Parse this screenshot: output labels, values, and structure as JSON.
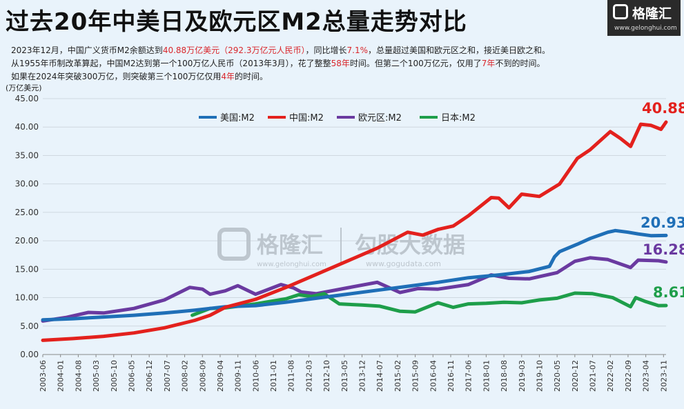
{
  "header": {
    "title": "过去20年中美日及欧元区M2总量走势对比",
    "line1": [
      {
        "t": "2023年12月，中国广义货币M2余额达到",
        "hl": false
      },
      {
        "t": "40.88万亿美元（292.3万亿元人民币）",
        "hl": true
      },
      {
        "t": "，同比增长",
        "hl": false
      },
      {
        "t": "7.1%",
        "hl": true
      },
      {
        "t": "，总量超过美国和欧元区之和，接近美日欧之和。",
        "hl": false
      }
    ],
    "line2": [
      {
        "t": "从1955年币制改革算起，中国M2达到第一个100万亿人民币（2013年3月），花了整整",
        "hl": false
      },
      {
        "t": "58年",
        "hl": true
      },
      {
        "t": "时间。但第二个100万亿元，仅用了",
        "hl": false
      },
      {
        "t": "7年",
        "hl": true
      },
      {
        "t": "不到的时间。",
        "hl": false
      }
    ],
    "line3": [
      {
        "t": "如果在2024年突破300万亿，则突破第三个100万亿仅用",
        "hl": false
      },
      {
        "t": "4年",
        "hl": true
      },
      {
        "t": "的时间。",
        "hl": false
      }
    ]
  },
  "logo": {
    "name": "格隆汇",
    "url": "www.gelonghui.com"
  },
  "watermark": {
    "name": "格隆汇",
    "url1": "www.gelonghui.com",
    "name2": "勾股大数据",
    "url2": "www.gogudata.com"
  },
  "colors": {
    "usa": "#1f6fb7",
    "china": "#e3211d",
    "euro": "#6a3aa0",
    "japan": "#1e9e4a"
  },
  "chart_data": {
    "type": "line",
    "unit_label": "(万亿美元)",
    "ylim": [
      0,
      45
    ],
    "y_ticks": [
      "0.00",
      "5.00",
      "10.00",
      "15.00",
      "20.00",
      "25.00",
      "30.00",
      "35.00",
      "40.00",
      "45.00"
    ],
    "grid": "horizontal",
    "legend_position": "top",
    "x_range": [
      "2003-06",
      "2023-12"
    ],
    "x_ticks": [
      "2003-06",
      "2004-01",
      "2004-08",
      "2005-03",
      "2005-10",
      "2006-05",
      "2006-12",
      "2007-07",
      "2008-02",
      "2008-09",
      "2009-04",
      "2009-11",
      "2010-06",
      "2011-01",
      "2011-08",
      "2012-03",
      "2012-10",
      "2013-05",
      "2013-12",
      "2014-07",
      "2015-02",
      "2015-09",
      "2016-04",
      "2016-11",
      "2017-06",
      "2018-01",
      "2018-08",
      "2019-03",
      "2019-10",
      "2020-05",
      "2020-12",
      "2021-07",
      "2022-02",
      "2022-09",
      "2023-04",
      "2023-11"
    ],
    "series": [
      {
        "name": "美国:M2",
        "color_key": "usa",
        "end_label": "20.93",
        "points": [
          [
            "2003-06",
            6.1
          ],
          [
            "2004-06",
            6.3
          ],
          [
            "2005-06",
            6.6
          ],
          [
            "2006-06",
            6.9
          ],
          [
            "2007-06",
            7.3
          ],
          [
            "2008-06",
            7.8
          ],
          [
            "2009-06",
            8.4
          ],
          [
            "2010-06",
            8.6
          ],
          [
            "2011-06",
            9.2
          ],
          [
            "2012-06",
            9.9
          ],
          [
            "2013-06",
            10.6
          ],
          [
            "2014-06",
            11.3
          ],
          [
            "2015-06",
            12.0
          ],
          [
            "2016-06",
            12.7
          ],
          [
            "2017-06",
            13.5
          ],
          [
            "2018-06",
            14.0
          ],
          [
            "2019-06",
            14.6
          ],
          [
            "2020-02",
            15.5
          ],
          [
            "2020-04",
            17.2
          ],
          [
            "2020-06",
            18.1
          ],
          [
            "2021-01",
            19.4
          ],
          [
            "2021-06",
            20.4
          ],
          [
            "2022-01",
            21.5
          ],
          [
            "2022-04",
            21.8
          ],
          [
            "2022-09",
            21.5
          ],
          [
            "2023-01",
            21.2
          ],
          [
            "2023-06",
            20.9
          ],
          [
            "2023-12",
            20.93
          ]
        ]
      },
      {
        "name": "中国:M2",
        "color_key": "china",
        "end_label": "40.88",
        "points": [
          [
            "2003-06",
            2.5
          ],
          [
            "2004-06",
            2.8
          ],
          [
            "2005-06",
            3.2
          ],
          [
            "2006-06",
            3.8
          ],
          [
            "2007-06",
            4.7
          ],
          [
            "2008-06",
            6.0
          ],
          [
            "2008-12",
            6.9
          ],
          [
            "2009-06",
            8.3
          ],
          [
            "2010-06",
            9.7
          ],
          [
            "2011-06",
            11.8
          ],
          [
            "2012-06",
            14.1
          ],
          [
            "2013-06",
            16.4
          ],
          [
            "2014-06",
            18.7
          ],
          [
            "2015-06",
            21.5
          ],
          [
            "2015-12",
            21.0
          ],
          [
            "2016-06",
            22.0
          ],
          [
            "2016-12",
            22.6
          ],
          [
            "2017-06",
            24.4
          ],
          [
            "2018-03",
            27.6
          ],
          [
            "2018-06",
            27.5
          ],
          [
            "2018-10",
            25.8
          ],
          [
            "2019-03",
            28.2
          ],
          [
            "2019-10",
            27.8
          ],
          [
            "2020-06",
            30.0
          ],
          [
            "2021-01",
            34.5
          ],
          [
            "2021-06",
            36.0
          ],
          [
            "2022-02",
            39.2
          ],
          [
            "2022-06",
            38.0
          ],
          [
            "2022-10",
            36.6
          ],
          [
            "2023-02",
            40.5
          ],
          [
            "2023-06",
            40.3
          ],
          [
            "2023-10",
            39.6
          ],
          [
            "2023-12",
            40.88
          ]
        ]
      },
      {
        "name": "欧元区:M2",
        "color_key": "euro",
        "end_label": "16.28",
        "points": [
          [
            "2003-06",
            5.9
          ],
          [
            "2004-03",
            6.5
          ],
          [
            "2004-12",
            7.4
          ],
          [
            "2005-06",
            7.3
          ],
          [
            "2006-06",
            8.1
          ],
          [
            "2007-06",
            9.6
          ],
          [
            "2008-04",
            11.8
          ],
          [
            "2008-09",
            11.5
          ],
          [
            "2008-12",
            10.6
          ],
          [
            "2009-06",
            11.2
          ],
          [
            "2009-11",
            12.1
          ],
          [
            "2010-06",
            10.6
          ],
          [
            "2011-04",
            12.3
          ],
          [
            "2011-09",
            11.7
          ],
          [
            "2011-12",
            11.0
          ],
          [
            "2012-06",
            10.7
          ],
          [
            "2013-06",
            11.7
          ],
          [
            "2014-06",
            12.7
          ],
          [
            "2015-03",
            10.9
          ],
          [
            "2015-10",
            11.6
          ],
          [
            "2016-06",
            11.5
          ],
          [
            "2017-06",
            12.3
          ],
          [
            "2018-03",
            14.0
          ],
          [
            "2018-10",
            13.4
          ],
          [
            "2019-06",
            13.3
          ],
          [
            "2020-05",
            14.4
          ],
          [
            "2020-12",
            16.4
          ],
          [
            "2021-06",
            17.0
          ],
          [
            "2022-01",
            16.7
          ],
          [
            "2022-10",
            15.3
          ],
          [
            "2023-01",
            16.6
          ],
          [
            "2023-09",
            16.5
          ],
          [
            "2023-12",
            16.28
          ]
        ]
      },
      {
        "name": "日本:M2",
        "color_key": "japan",
        "end_label": "8.61",
        "points": [
          [
            "2008-05",
            6.9
          ],
          [
            "2008-12",
            8.1
          ],
          [
            "2009-06",
            8.2
          ],
          [
            "2010-06",
            8.9
          ],
          [
            "2011-06",
            9.8
          ],
          [
            "2011-11",
            10.5
          ],
          [
            "2012-04",
            10.2
          ],
          [
            "2012-09",
            10.7
          ],
          [
            "2013-03",
            8.9
          ],
          [
            "2013-12",
            8.7
          ],
          [
            "2014-07",
            8.5
          ],
          [
            "2015-03",
            7.6
          ],
          [
            "2015-09",
            7.5
          ],
          [
            "2016-06",
            9.1
          ],
          [
            "2016-12",
            8.3
          ],
          [
            "2017-06",
            8.9
          ],
          [
            "2018-01",
            9.0
          ],
          [
            "2018-08",
            9.2
          ],
          [
            "2019-03",
            9.1
          ],
          [
            "2019-10",
            9.6
          ],
          [
            "2020-05",
            9.9
          ],
          [
            "2020-12",
            10.8
          ],
          [
            "2021-07",
            10.7
          ],
          [
            "2022-03",
            10.0
          ],
          [
            "2022-10",
            8.4
          ],
          [
            "2022-12",
            10.0
          ],
          [
            "2023-04",
            9.3
          ],
          [
            "2023-09",
            8.6
          ],
          [
            "2023-12",
            8.61
          ]
        ]
      }
    ]
  }
}
